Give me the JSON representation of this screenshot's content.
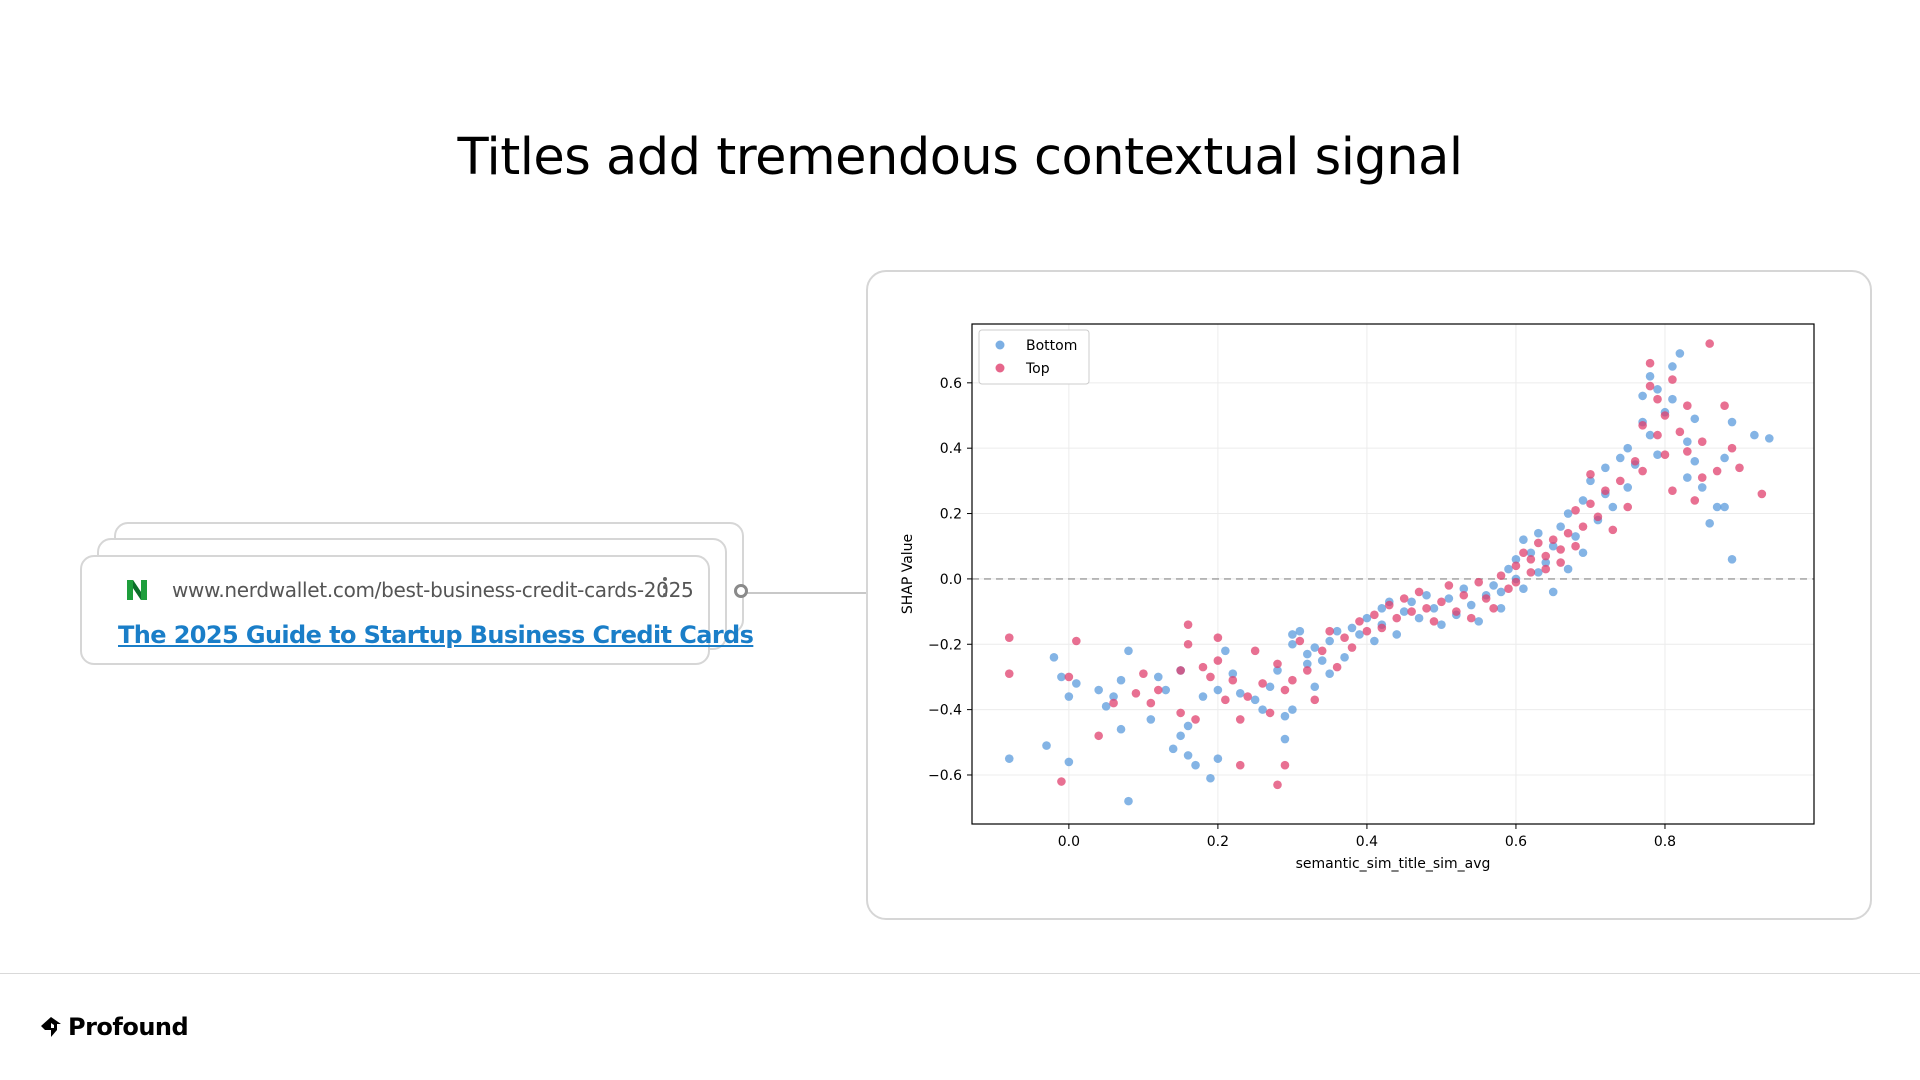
{
  "slide": {
    "title": "Titles add tremendous contextual signal"
  },
  "result_card": {
    "url": "www.nerdwallet.com/best-business-credit-cards-2025",
    "title": "The 2025 Guide to Startup Business Credit Cards",
    "favicon": "nerdwallet-logo-icon",
    "colors": {
      "link": "#1a7ec8"
    }
  },
  "footer": {
    "brand": "Profound",
    "logo": "profound-logo-icon"
  },
  "chart_data": {
    "type": "scatter",
    "title": "",
    "xlabel": "semantic_sim_title_sim_avg",
    "ylabel": "SHAP Value",
    "xlim": [
      -0.13,
      1.0
    ],
    "ylim": [
      -0.75,
      0.78
    ],
    "xticks": [
      0.0,
      0.2,
      0.4,
      0.6,
      0.8
    ],
    "yticks": [
      -0.6,
      -0.4,
      -0.2,
      0.0,
      0.2,
      0.4,
      0.6
    ],
    "xtick_labels": [
      "0.0",
      "0.2",
      "0.4",
      "0.6",
      "0.8"
    ],
    "ytick_labels": [
      "−0.6",
      "−0.4",
      "−0.2",
      "0.0",
      "0.2",
      "0.4",
      "0.6"
    ],
    "grid": true,
    "reference_line": {
      "y": 0.0,
      "style": "dashed"
    },
    "legend": {
      "position": "top-left"
    },
    "series": [
      {
        "name": "Bottom",
        "color": "#5b9bdc",
        "points": [
          [
            -0.08,
            -0.55
          ],
          [
            -0.03,
            -0.51
          ],
          [
            -0.02,
            -0.24
          ],
          [
            -0.01,
            -0.3
          ],
          [
            0.0,
            -0.36
          ],
          [
            0.0,
            -0.56
          ],
          [
            0.01,
            -0.32
          ],
          [
            0.04,
            -0.34
          ],
          [
            0.05,
            -0.39
          ],
          [
            0.06,
            -0.36
          ],
          [
            0.07,
            -0.46
          ],
          [
            0.07,
            -0.31
          ],
          [
            0.08,
            -0.22
          ],
          [
            0.08,
            -0.68
          ],
          [
            0.11,
            -0.43
          ],
          [
            0.12,
            -0.3
          ],
          [
            0.13,
            -0.34
          ],
          [
            0.14,
            -0.52
          ],
          [
            0.15,
            -0.48
          ],
          [
            0.15,
            -0.28
          ],
          [
            0.16,
            -0.54
          ],
          [
            0.16,
            -0.45
          ],
          [
            0.17,
            -0.57
          ],
          [
            0.18,
            -0.36
          ],
          [
            0.19,
            -0.61
          ],
          [
            0.2,
            -0.34
          ],
          [
            0.2,
            -0.55
          ],
          [
            0.21,
            -0.22
          ],
          [
            0.22,
            -0.29
          ],
          [
            0.23,
            -0.35
          ],
          [
            0.25,
            -0.37
          ],
          [
            0.26,
            -0.4
          ],
          [
            0.27,
            -0.33
          ],
          [
            0.28,
            -0.28
          ],
          [
            0.29,
            -0.42
          ],
          [
            0.29,
            -0.49
          ],
          [
            0.3,
            -0.4
          ],
          [
            0.3,
            -0.2
          ],
          [
            0.3,
            -0.17
          ],
          [
            0.31,
            -0.16
          ],
          [
            0.32,
            -0.23
          ],
          [
            0.32,
            -0.26
          ],
          [
            0.33,
            -0.21
          ],
          [
            0.33,
            -0.33
          ],
          [
            0.34,
            -0.25
          ],
          [
            0.35,
            -0.29
          ],
          [
            0.35,
            -0.19
          ],
          [
            0.36,
            -0.16
          ],
          [
            0.37,
            -0.24
          ],
          [
            0.38,
            -0.15
          ],
          [
            0.39,
            -0.17
          ],
          [
            0.4,
            -0.12
          ],
          [
            0.41,
            -0.19
          ],
          [
            0.42,
            -0.09
          ],
          [
            0.42,
            -0.14
          ],
          [
            0.43,
            -0.07
          ],
          [
            0.44,
            -0.17
          ],
          [
            0.45,
            -0.1
          ],
          [
            0.46,
            -0.07
          ],
          [
            0.47,
            -0.12
          ],
          [
            0.48,
            -0.05
          ],
          [
            0.49,
            -0.09
          ],
          [
            0.5,
            -0.14
          ],
          [
            0.51,
            -0.06
          ],
          [
            0.52,
            -0.11
          ],
          [
            0.53,
            -0.03
          ],
          [
            0.54,
            -0.08
          ],
          [
            0.55,
            -0.13
          ],
          [
            0.56,
            -0.05
          ],
          [
            0.57,
            -0.02
          ],
          [
            0.58,
            -0.09
          ],
          [
            0.58,
            -0.04
          ],
          [
            0.59,
            0.03
          ],
          [
            0.6,
            0.0
          ],
          [
            0.6,
            0.06
          ],
          [
            0.61,
            0.12
          ],
          [
            0.61,
            -0.03
          ],
          [
            0.62,
            0.08
          ],
          [
            0.63,
            0.02
          ],
          [
            0.63,
            0.14
          ],
          [
            0.64,
            0.05
          ],
          [
            0.65,
            -0.04
          ],
          [
            0.65,
            0.1
          ],
          [
            0.66,
            0.16
          ],
          [
            0.67,
            0.03
          ],
          [
            0.67,
            0.2
          ],
          [
            0.68,
            0.13
          ],
          [
            0.69,
            0.24
          ],
          [
            0.69,
            0.08
          ],
          [
            0.7,
            0.3
          ],
          [
            0.71,
            0.18
          ],
          [
            0.72,
            0.26
          ],
          [
            0.72,
            0.34
          ],
          [
            0.73,
            0.22
          ],
          [
            0.74,
            0.37
          ],
          [
            0.75,
            0.28
          ],
          [
            0.75,
            0.4
          ],
          [
            0.76,
            0.35
          ],
          [
            0.77,
            0.48
          ],
          [
            0.77,
            0.56
          ],
          [
            0.78,
            0.62
          ],
          [
            0.78,
            0.44
          ],
          [
            0.79,
            0.58
          ],
          [
            0.79,
            0.38
          ],
          [
            0.8,
            0.51
          ],
          [
            0.81,
            0.65
          ],
          [
            0.81,
            0.55
          ],
          [
            0.82,
            0.69
          ],
          [
            0.83,
            0.42
          ],
          [
            0.83,
            0.31
          ],
          [
            0.84,
            0.36
          ],
          [
            0.84,
            0.49
          ],
          [
            0.85,
            0.28
          ],
          [
            0.86,
            0.17
          ],
          [
            0.87,
            0.22
          ],
          [
            0.88,
            0.37
          ],
          [
            0.88,
            0.22
          ],
          [
            0.89,
            0.06
          ],
          [
            0.89,
            0.48
          ],
          [
            0.92,
            0.44
          ],
          [
            0.94,
            0.43
          ]
        ]
      },
      {
        "name": "Top",
        "color": "#e0406e",
        "points": [
          [
            -0.08,
            -0.18
          ],
          [
            -0.08,
            -0.29
          ],
          [
            -0.01,
            -0.62
          ],
          [
            0.0,
            -0.3
          ],
          [
            0.01,
            -0.19
          ],
          [
            0.04,
            -0.48
          ],
          [
            0.06,
            -0.38
          ],
          [
            0.09,
            -0.35
          ],
          [
            0.1,
            -0.29
          ],
          [
            0.11,
            -0.38
          ],
          [
            0.12,
            -0.34
          ],
          [
            0.15,
            -0.41
          ],
          [
            0.15,
            -0.28
          ],
          [
            0.16,
            -0.14
          ],
          [
            0.16,
            -0.2
          ],
          [
            0.17,
            -0.43
          ],
          [
            0.18,
            -0.27
          ],
          [
            0.19,
            -0.3
          ],
          [
            0.2,
            -0.25
          ],
          [
            0.2,
            -0.18
          ],
          [
            0.21,
            -0.37
          ],
          [
            0.22,
            -0.31
          ],
          [
            0.23,
            -0.43
          ],
          [
            0.23,
            -0.57
          ],
          [
            0.24,
            -0.36
          ],
          [
            0.25,
            -0.22
          ],
          [
            0.26,
            -0.32
          ],
          [
            0.27,
            -0.41
          ],
          [
            0.28,
            -0.26
          ],
          [
            0.28,
            -0.63
          ],
          [
            0.29,
            -0.34
          ],
          [
            0.29,
            -0.57
          ],
          [
            0.3,
            -0.31
          ],
          [
            0.31,
            -0.19
          ],
          [
            0.32,
            -0.28
          ],
          [
            0.33,
            -0.37
          ],
          [
            0.34,
            -0.22
          ],
          [
            0.35,
            -0.16
          ],
          [
            0.36,
            -0.27
          ],
          [
            0.37,
            -0.18
          ],
          [
            0.38,
            -0.21
          ],
          [
            0.39,
            -0.13
          ],
          [
            0.4,
            -0.16
          ],
          [
            0.41,
            -0.11
          ],
          [
            0.42,
            -0.15
          ],
          [
            0.43,
            -0.08
          ],
          [
            0.44,
            -0.12
          ],
          [
            0.45,
            -0.06
          ],
          [
            0.46,
            -0.1
          ],
          [
            0.47,
            -0.04
          ],
          [
            0.48,
            -0.09
          ],
          [
            0.49,
            -0.13
          ],
          [
            0.5,
            -0.07
          ],
          [
            0.51,
            -0.02
          ],
          [
            0.52,
            -0.1
          ],
          [
            0.53,
            -0.05
          ],
          [
            0.54,
            -0.12
          ],
          [
            0.55,
            -0.01
          ],
          [
            0.56,
            -0.06
          ],
          [
            0.57,
            -0.09
          ],
          [
            0.58,
            0.01
          ],
          [
            0.59,
            -0.03
          ],
          [
            0.6,
            0.04
          ],
          [
            0.6,
            -0.01
          ],
          [
            0.61,
            0.08
          ],
          [
            0.62,
            0.02
          ],
          [
            0.62,
            0.06
          ],
          [
            0.63,
            0.11
          ],
          [
            0.64,
            0.03
          ],
          [
            0.64,
            0.07
          ],
          [
            0.65,
            0.12
          ],
          [
            0.66,
            0.05
          ],
          [
            0.66,
            0.09
          ],
          [
            0.67,
            0.14
          ],
          [
            0.68,
            0.21
          ],
          [
            0.68,
            0.1
          ],
          [
            0.69,
            0.16
          ],
          [
            0.7,
            0.23
          ],
          [
            0.7,
            0.32
          ],
          [
            0.71,
            0.19
          ],
          [
            0.72,
            0.27
          ],
          [
            0.73,
            0.15
          ],
          [
            0.74,
            0.3
          ],
          [
            0.75,
            0.22
          ],
          [
            0.76,
            0.36
          ],
          [
            0.77,
            0.33
          ],
          [
            0.77,
            0.47
          ],
          [
            0.78,
            0.59
          ],
          [
            0.78,
            0.66
          ],
          [
            0.79,
            0.44
          ],
          [
            0.79,
            0.55
          ],
          [
            0.8,
            0.38
          ],
          [
            0.8,
            0.5
          ],
          [
            0.81,
            0.61
          ],
          [
            0.81,
            0.27
          ],
          [
            0.82,
            0.45
          ],
          [
            0.83,
            0.39
          ],
          [
            0.83,
            0.53
          ],
          [
            0.84,
            0.24
          ],
          [
            0.85,
            0.42
          ],
          [
            0.85,
            0.31
          ],
          [
            0.86,
            0.72
          ],
          [
            0.87,
            0.33
          ],
          [
            0.88,
            0.53
          ],
          [
            0.89,
            0.4
          ],
          [
            0.9,
            0.34
          ],
          [
            0.93,
            0.26
          ]
        ]
      }
    ]
  }
}
